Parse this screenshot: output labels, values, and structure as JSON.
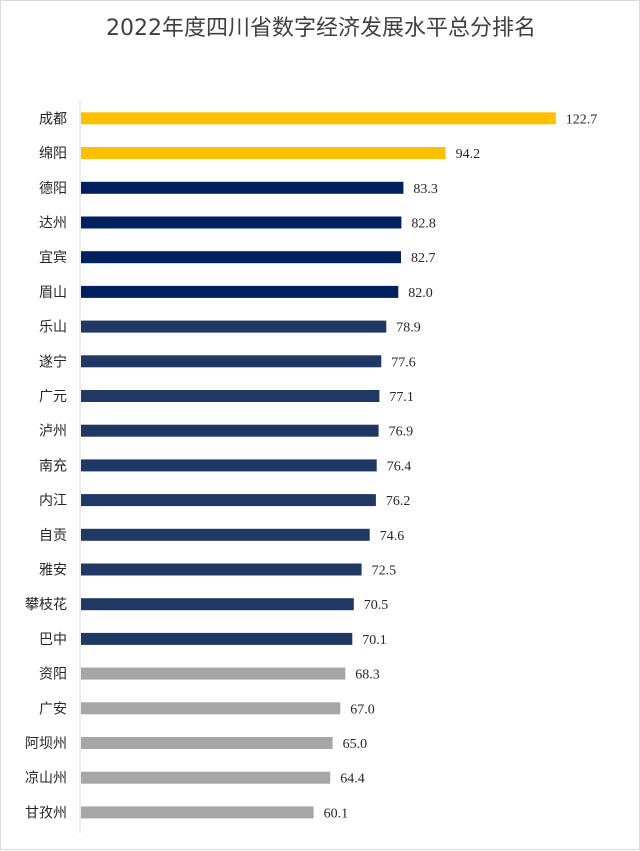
{
  "chart_data": {
    "type": "bar",
    "orientation": "horizontal",
    "title": "2022年度四川省数字经济发展水平总分排名",
    "xlabel": "",
    "ylabel": "",
    "grid": false,
    "legend": "none",
    "xlim": [
      0,
      130
    ],
    "categories": [
      "成都",
      "绵阳",
      "德阳",
      "达州",
      "宜宾",
      "眉山",
      "乐山",
      "遂宁",
      "广元",
      "泸州",
      "南充",
      "内江",
      "自贡",
      "雅安",
      "攀枝花",
      "巴中",
      "资阳",
      "广安",
      "阿坝州",
      "凉山州",
      "甘孜州"
    ],
    "values": [
      122.7,
      94.2,
      83.3,
      82.8,
      82.7,
      82.0,
      78.9,
      77.6,
      77.1,
      76.9,
      76.4,
      76.2,
      74.6,
      72.5,
      70.5,
      70.1,
      68.3,
      67.0,
      65.0,
      64.4,
      60.1
    ],
    "value_labels": [
      "122.7",
      "94.2",
      "83.3",
      "82.8",
      "82.7",
      "82.0",
      "78.9",
      "77.6",
      "77.1",
      "76.9",
      "76.4",
      "76.2",
      "74.6",
      "72.5",
      "70.5",
      "70.1",
      "68.3",
      "67.0",
      "65.0",
      "64.4",
      "60.1"
    ],
    "bar_colors": [
      "#FFC000",
      "#FFC000",
      "#002060",
      "#002060",
      "#002060",
      "#002060",
      "#1F3864",
      "#1F3864",
      "#1F3864",
      "#1F3864",
      "#1F3864",
      "#1F3864",
      "#1F3864",
      "#1F3864",
      "#1F3864",
      "#1F3864",
      "#A6A6A6",
      "#A6A6A6",
      "#A6A6A6",
      "#A6A6A6",
      "#A6A6A6"
    ]
  }
}
